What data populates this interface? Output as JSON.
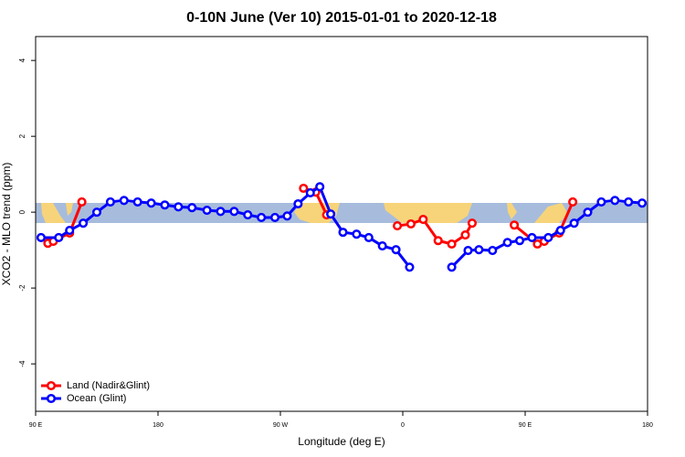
{
  "chart_data": {
    "type": "line",
    "title": "0-10N June (Ver 10)   2015-01-01 to 2020-12-18",
    "x_label": "Longitude (deg E)",
    "y_label": "XCO2 - MLO trend (ppm)",
    "xlim": [
      90,
      540
    ],
    "xticks": [
      {
        "value": 90,
        "label": "90 E"
      },
      {
        "value": 180,
        "label": "180"
      },
      {
        "value": 270,
        "label": "90 W"
      },
      {
        "value": 360,
        "label": "0"
      },
      {
        "value": 450,
        "label": "90 E"
      },
      {
        "value": 540,
        "label": "180"
      }
    ],
    "ylim": [
      -5.25,
      4.63
    ],
    "yticks": [
      -4,
      -2,
      0,
      2,
      4
    ],
    "legend": "bottom-left",
    "series": [
      {
        "name": "Land (Nadir&Glint)",
        "color": "#ff0000",
        "x": [
          99,
          103,
          115,
          124,
          null,
          287,
          296,
          304,
          null,
          356,
          366,
          375,
          386,
          396,
          406,
          411,
          null,
          442,
          459,
          464,
          475,
          485
        ],
        "values": [
          -0.82,
          -0.77,
          -0.55,
          0.27,
          null,
          0.63,
          0.53,
          -0.07,
          null,
          -0.36,
          -0.31,
          -0.19,
          -0.75,
          -0.84,
          -0.6,
          -0.29,
          null,
          -0.34,
          -0.84,
          -0.77,
          -0.55,
          0.27
        ]
      },
      {
        "name": "Ocean (Glint)",
        "color": "#0000ff",
        "x": [
          94,
          107,
          115,
          125,
          135,
          145,
          155,
          165,
          175,
          185,
          195,
          205,
          216,
          226,
          236,
          246,
          256,
          266,
          275,
          283,
          292,
          299,
          307,
          316,
          326,
          335,
          345,
          355,
          365,
          null,
          396,
          408,
          416,
          426,
          437,
          446,
          455,
          467,
          476,
          486,
          496,
          506,
          516,
          526,
          536
        ],
        "values": [
          -0.67,
          -0.67,
          -0.48,
          -0.29,
          0,
          0.27,
          0.31,
          0.27,
          0.24,
          0.19,
          0.14,
          0.12,
          0.05,
          0.02,
          0.02,
          -0.07,
          -0.14,
          -0.14,
          -0.1,
          0.22,
          0.51,
          0.67,
          -0.05,
          -0.53,
          -0.58,
          -0.67,
          -0.89,
          -0.99,
          -1.45,
          null,
          -1.45,
          -1.01,
          -0.99,
          -1.01,
          -0.8,
          -0.75,
          -0.67,
          -0.67,
          -0.48,
          -0.29,
          0,
          0.27,
          0.31,
          0.27,
          0.24
        ]
      }
    ]
  }
}
